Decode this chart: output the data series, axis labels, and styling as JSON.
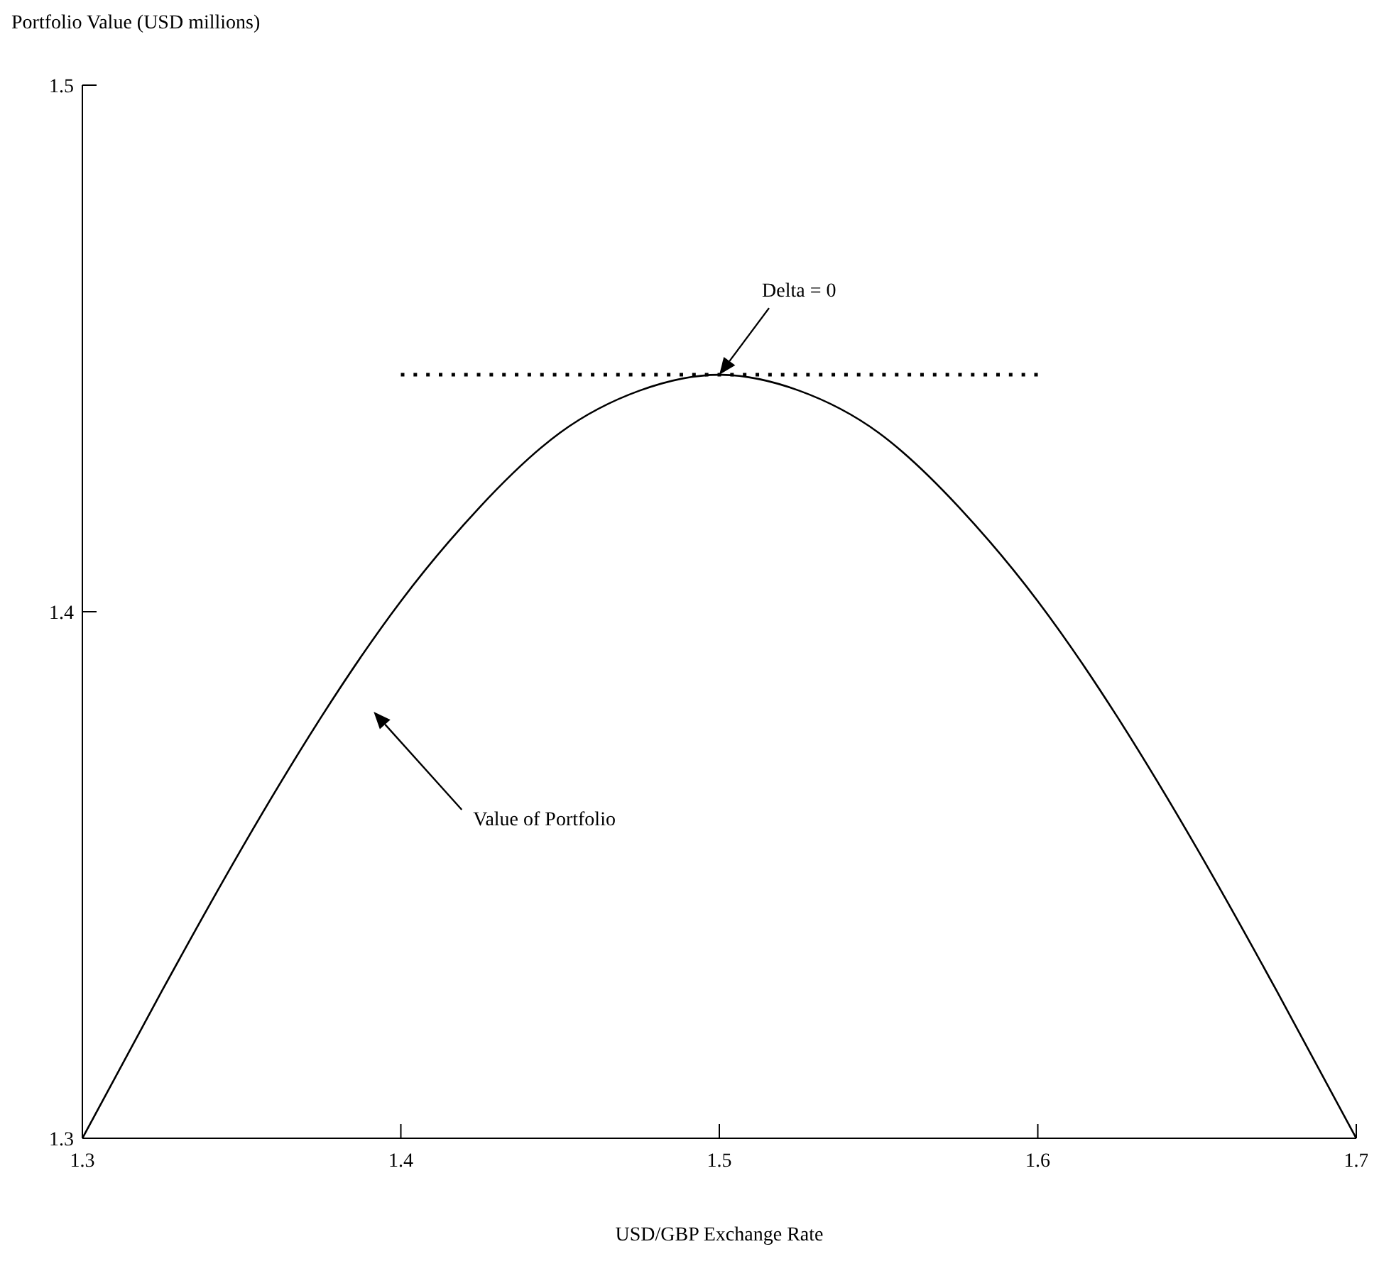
{
  "chart_data": {
    "type": "line",
    "xlabel": "USD/GBP Exchange Rate",
    "ylabel": "Portfolio Value (USD millions)",
    "xlim": [
      1.3,
      1.7
    ],
    "ylim": [
      1.3,
      1.5
    ],
    "xticks": [
      1.3,
      1.4,
      1.5,
      1.6,
      1.7
    ],
    "yticks": [
      1.3,
      1.4,
      1.5
    ],
    "grid": false,
    "series": [
      {
        "color": "#000000",
        "line_style": "solid",
        "x": [
          1.3,
          1.325,
          1.35,
          1.375,
          1.4,
          1.425,
          1.45,
          1.475,
          1.5,
          1.525,
          1.55,
          1.575,
          1.6,
          1.625,
          1.65,
          1.675,
          1.7
        ],
        "values": [
          1.3,
          1.328,
          1.355,
          1.38,
          1.402,
          1.42,
          1.434,
          1.442,
          1.445,
          1.442,
          1.434,
          1.42,
          1.402,
          1.38,
          1.355,
          1.328,
          1.3
        ]
      },
      {
        "color": "#000000",
        "line_style": "dotted",
        "x": [
          1.4,
          1.6
        ],
        "values": [
          1.445,
          1.445
        ]
      }
    ],
    "annotations": [
      "Delta = 0",
      "Value of Portfolio"
    ]
  }
}
